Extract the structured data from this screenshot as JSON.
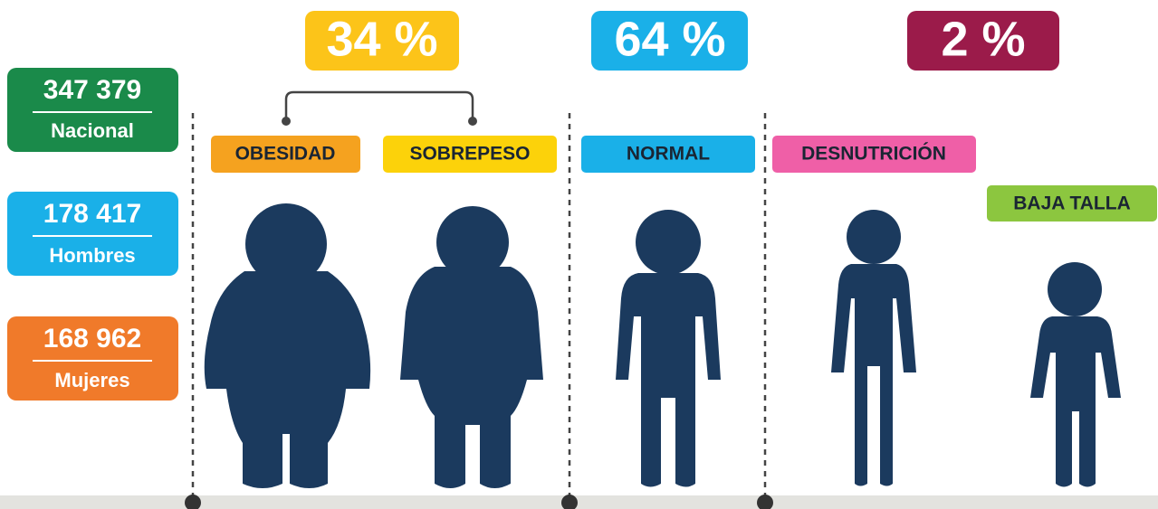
{
  "stats": [
    {
      "value": "347 379",
      "label": "Nacional"
    },
    {
      "value": "178 417",
      "label": "Hombres"
    },
    {
      "value": "168 962",
      "label": "Mujeres"
    }
  ],
  "percentages": [
    "34 %",
    "64 %",
    "2 %"
  ],
  "categories": [
    "OBESIDAD",
    "SOBREPESO",
    "NORMAL",
    "DESNUTRICIÓN",
    "BAJA TALLA"
  ]
}
